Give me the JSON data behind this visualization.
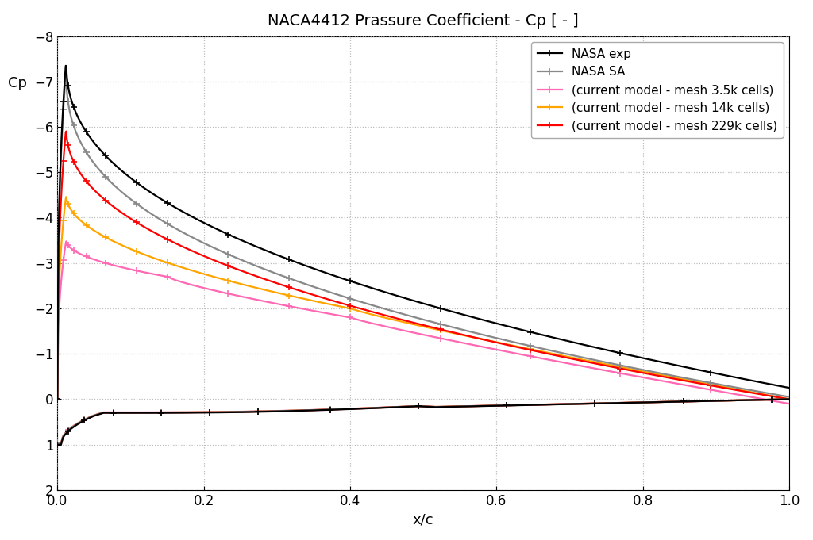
{
  "title": "NACA4412 Prassure Coefficient - Cp [ - ]",
  "xlabel": "x/c",
  "ylabel": "Cp",
  "xlim": [
    0,
    1
  ],
  "ylim": [
    2,
    -8
  ],
  "yticks": [
    -8,
    -7,
    -6,
    -5,
    -4,
    -3,
    -2,
    -1,
    0,
    1,
    2
  ],
  "xticks": [
    0,
    0.2,
    0.4,
    0.6,
    0.8,
    1.0
  ],
  "background_color": "#ffffff",
  "grid_color": "#aaaaaa",
  "series": [
    {
      "label": "NASA exp",
      "color": "#000000",
      "linewidth": 1.6,
      "marker": "+",
      "markersize": 6,
      "zorder": 6
    },
    {
      "label": "NASA SA",
      "color": "#888888",
      "linewidth": 1.6,
      "marker": "+",
      "markersize": 6,
      "zorder": 5
    },
    {
      "label": "(current model - mesh 3.5k cells)",
      "color": "#ff69b4",
      "linewidth": 1.6,
      "marker": "+",
      "markersize": 6,
      "zorder": 3
    },
    {
      "label": "(current model - mesh 14k cells)",
      "color": "#ffa500",
      "linewidth": 1.6,
      "marker": "+",
      "markersize": 6,
      "zorder": 4
    },
    {
      "label": "(current model - mesh 229k cells)",
      "color": "#ff0000",
      "linewidth": 1.6,
      "marker": "+",
      "markersize": 6,
      "zorder": 4
    }
  ],
  "title_fontsize": 14,
  "label_fontsize": 13,
  "tick_fontsize": 12,
  "legend_fontsize": 11
}
